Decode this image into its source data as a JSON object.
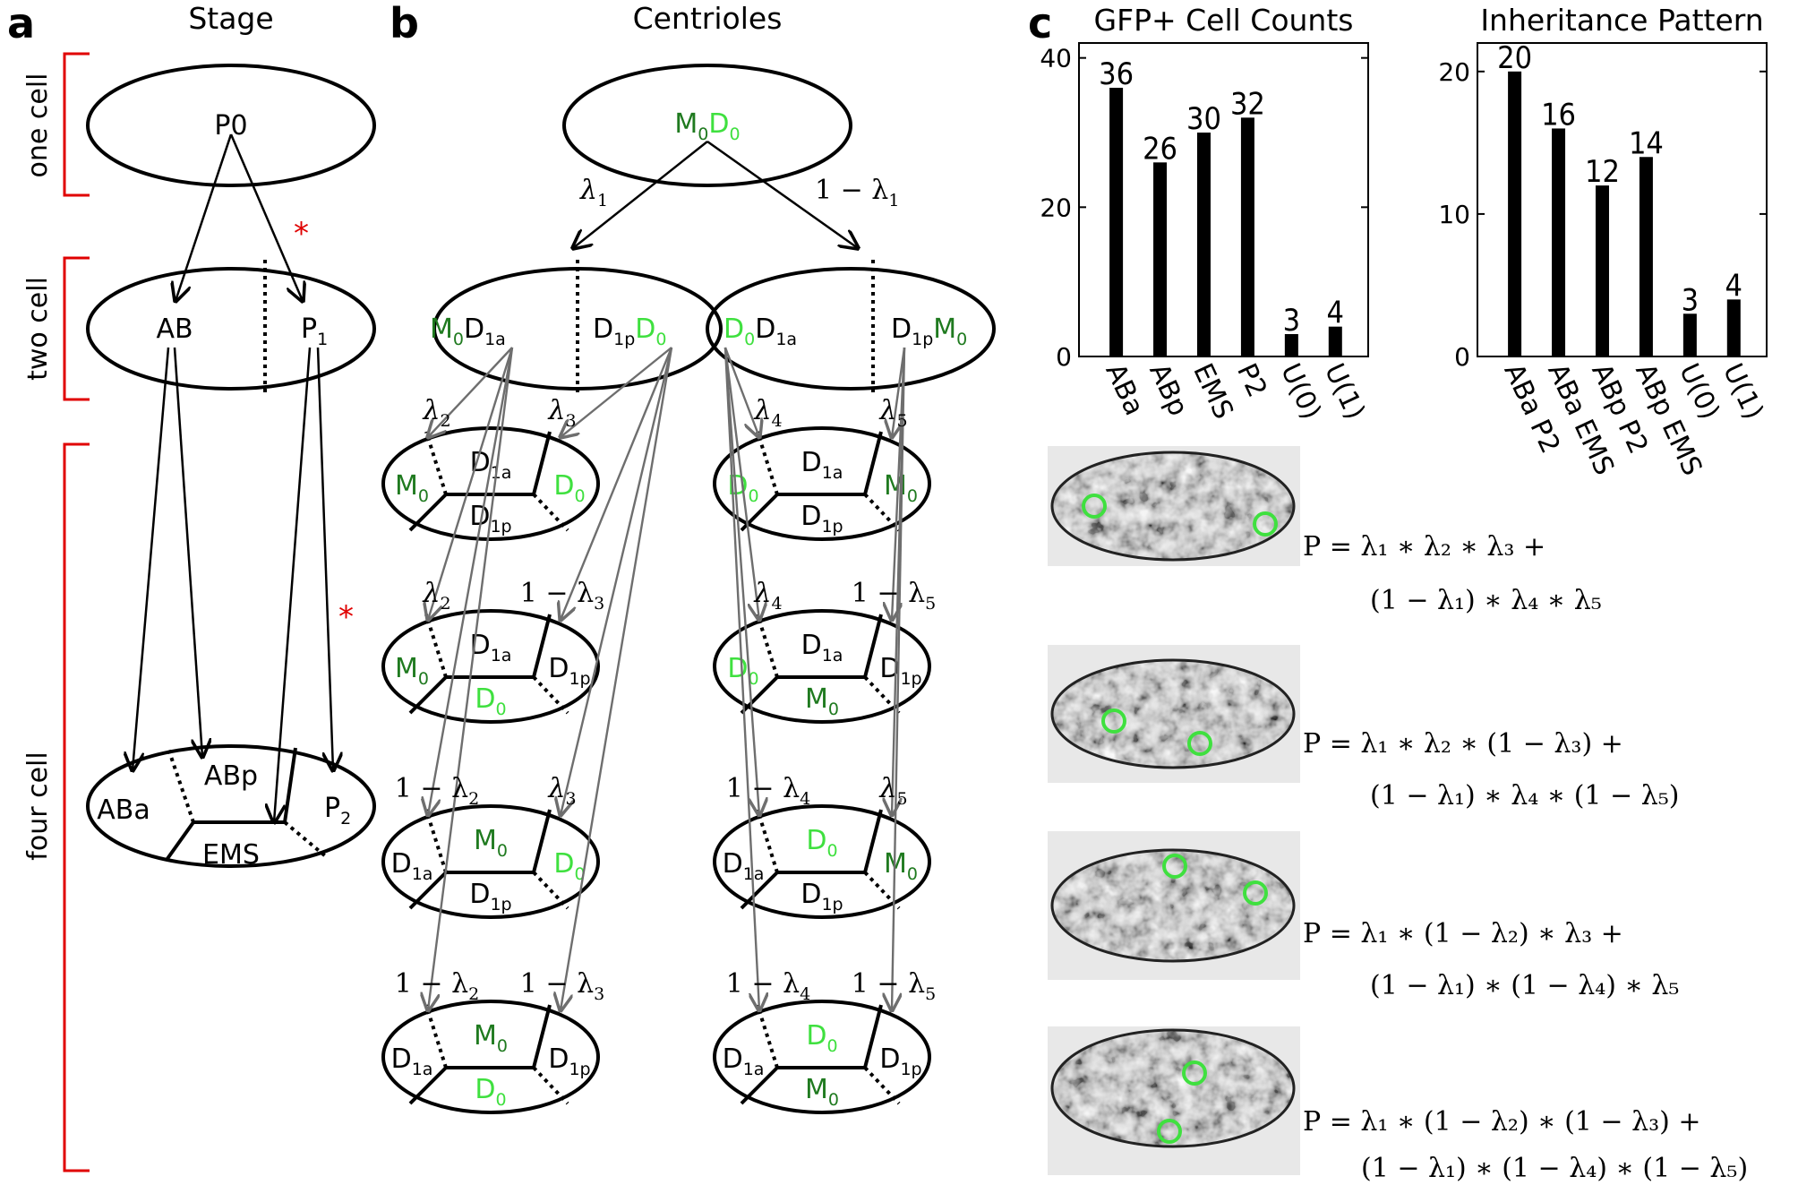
{
  "panels": {
    "a": {
      "letter": "a",
      "title": "Stage",
      "stages": [
        "one cell",
        "two cell",
        "four cell"
      ],
      "cells": {
        "p0": "P0",
        "ab": "AB",
        "p1": "P",
        "p1_sub": "1",
        "aba": "ABa",
        "abp": "ABp",
        "ems": "EMS",
        "p2": "P",
        "p2_sub": "2"
      },
      "marker": "*"
    },
    "b": {
      "letter": "b",
      "title": "Centrioles",
      "root": {
        "m": "M",
        "m_sub": "0",
        "d": "D",
        "d_sub": "0"
      },
      "left_two_cell": {
        "a_m": "M",
        "a_m_sub": "0",
        "a_d": "D",
        "a_d_sub": "1a",
        "b_d": "D",
        "b_d_sub": "1p",
        "b_d2": "D",
        "b_d2_sub": "0"
      },
      "right_two_cell": {
        "a_d": "D",
        "a_d_sub": "0",
        "a_d2": "D",
        "a_d2_sub": "1a",
        "b_d": "D",
        "b_d_sub": "1p",
        "b_m": "M",
        "b_m_sub": "0"
      },
      "lambda_top_left": "λ",
      "lambda_top_left_sub": "1",
      "lambda_top_right": "1 − λ",
      "lambda_top_right_sub": "1",
      "row_labels": [
        {
          "l1": "λ",
          "s1": "2",
          "l2": "λ",
          "s2": "3",
          "r1": "λ",
          "rs1": "4",
          "r2": "λ",
          "rs2": "5"
        },
        {
          "l1": "λ",
          "s1": "2",
          "l2": "1 − λ",
          "s2": "3",
          "r1": "λ",
          "rs1": "4",
          "r2": "1 − λ",
          "rs2": "5"
        },
        {
          "l1": "1 − λ",
          "s1": "2",
          "l2": "λ",
          "s2": "3",
          "r1": "1 − λ",
          "rs1": "4",
          "r2": "λ",
          "rs2": "5"
        },
        {
          "l1": "1 − λ",
          "s1": "2",
          "l2": "1 − λ",
          "s2": "3",
          "r1": "1 − λ",
          "rs1": "4",
          "r2": "1 − λ",
          "rs2": "5"
        }
      ]
    },
    "c": {
      "letter": "c",
      "formulas": [
        {
          "line1": "P = λ₁ ∗ λ₂ ∗ λ₃ +",
          "line2": "(1 − λ₁) ∗ λ₄ ∗ λ₅"
        },
        {
          "line1": "P = λ₁ ∗ λ₂ ∗ (1 − λ₃) +",
          "line2": "(1 − λ₁) ∗ λ₄ ∗ (1 − λ₅)"
        },
        {
          "line1": "P = λ₁ ∗ (1 − λ₂) ∗ λ₃ +",
          "line2": "(1 − λ₁) ∗ (1 − λ₄) ∗ λ₅"
        },
        {
          "line1": "P = λ₁ ∗ (1 − λ₂) ∗ (1 − λ₃) +",
          "line2": "(1 − λ₁) ∗ (1 − λ₄) ∗ (1 − λ₅)"
        }
      ]
    }
  },
  "chart_data": [
    {
      "type": "bar",
      "title": "GFP+ Cell Counts",
      "categories": [
        "ABa",
        "ABp",
        "EMS",
        "P2",
        "U(0)",
        "U(1)"
      ],
      "values": [
        36,
        26,
        30,
        32,
        3,
        4
      ],
      "ylim": [
        0,
        42
      ],
      "yticks": [
        0,
        20,
        40
      ],
      "color": "#000000"
    },
    {
      "type": "bar",
      "title": "Inheritance Pattern",
      "categories": [
        "ABa P2",
        "ABa EMS",
        "ABp P2",
        "ABp EMS",
        "U(0)",
        "U(1)"
      ],
      "values": [
        20,
        16,
        12,
        14,
        3,
        4
      ],
      "ylim": [
        0,
        22
      ],
      "yticks": [
        0,
        10,
        20
      ],
      "color": "#000000"
    }
  ],
  "colors": {
    "dark_green": "#1f7a1f",
    "light_green": "#3fe03f",
    "stage_bracket": "#e00000",
    "gray_arrow": "#6e6e6e"
  }
}
